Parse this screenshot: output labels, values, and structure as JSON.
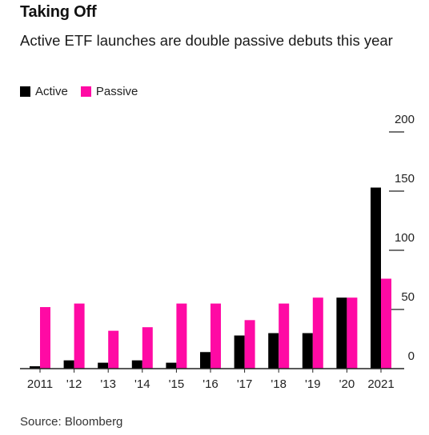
{
  "title": "Taking Off",
  "subtitle": "Active ETF launches are double passive debuts this year",
  "source": "Source: Bloomberg",
  "colors": {
    "active": "#000000",
    "passive": "#ff0aa4",
    "axis": "#222222",
    "text": "#222222"
  },
  "chart_data": {
    "type": "bar",
    "categories": [
      "2011",
      "'12",
      "'13",
      "'14",
      "'15",
      "'16",
      "'17",
      "'18",
      "'19",
      "'20",
      "2021"
    ],
    "series": [
      {
        "name": "Active",
        "color": "#000000",
        "values": [
          2,
          7,
          5,
          7,
          5,
          14,
          28,
          30,
          30,
          60,
          153
        ]
      },
      {
        "name": "Passive",
        "color": "#ff0aa4",
        "values": [
          52,
          55,
          32,
          35,
          55,
          55,
          41,
          55,
          60,
          60,
          76
        ]
      }
    ],
    "y_ticks": [
      0,
      50,
      100,
      150,
      200
    ],
    "ylim": [
      0,
      200
    ],
    "y_axis_position": "right",
    "legend_position": "top-left",
    "grid": false,
    "xlabel": "",
    "ylabel": ""
  }
}
